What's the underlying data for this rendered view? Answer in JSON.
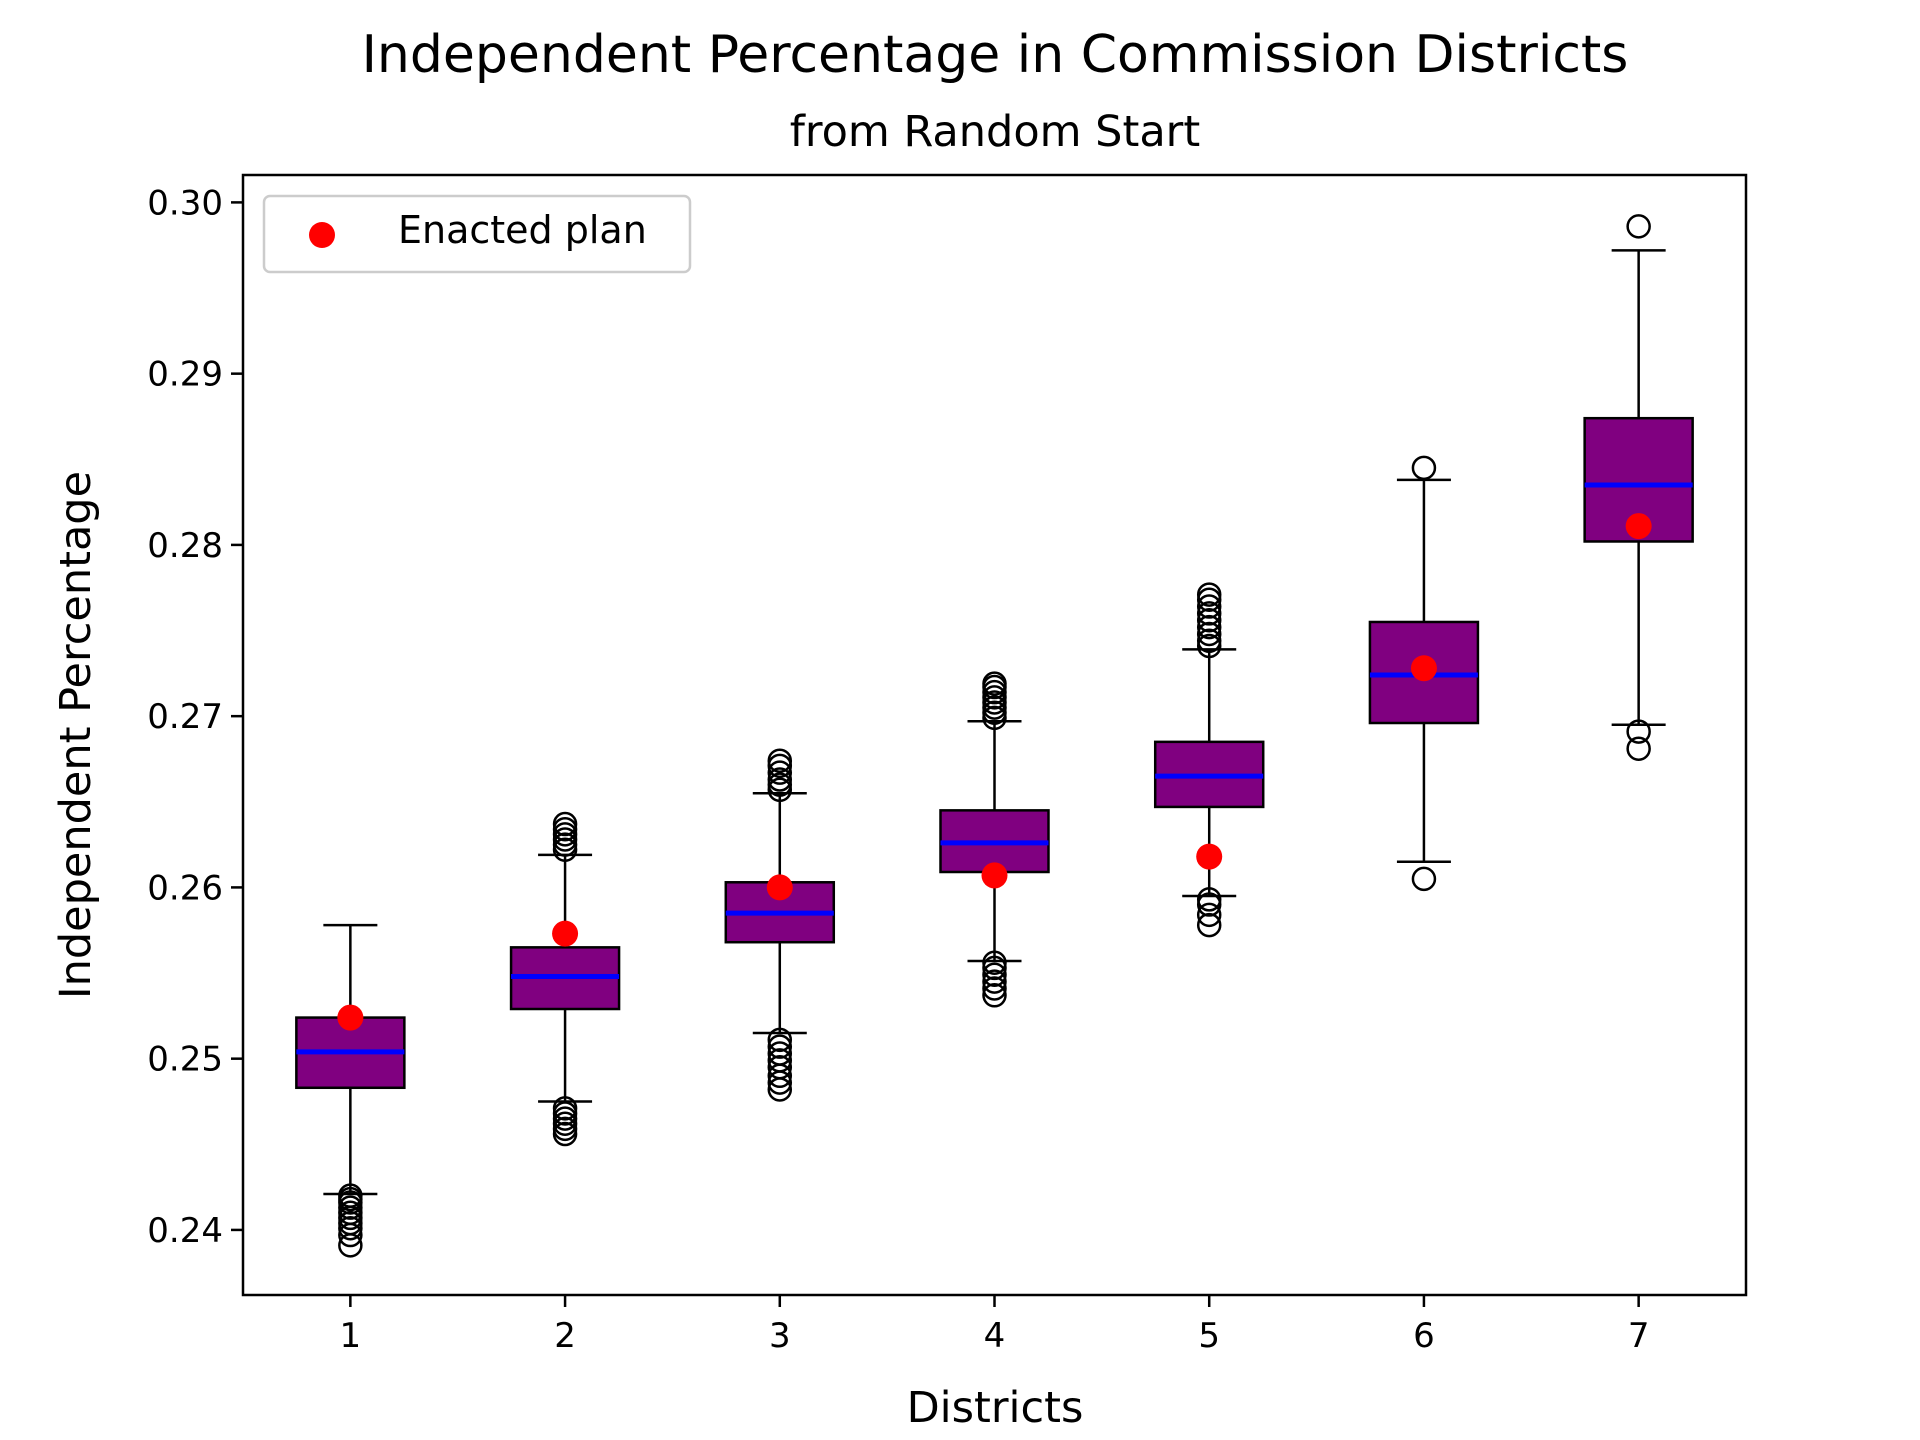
{
  "chart_data": {
    "type": "box",
    "title": "Independent Percentage in Commission Districts",
    "subtitle": "from Random Start",
    "xlabel": "Districts",
    "ylabel": "Independent Percentage",
    "ylim": [
      0.2362,
      0.3016
    ],
    "yticks": [
      0.24,
      0.25,
      0.26,
      0.27,
      0.28,
      0.29,
      0.3
    ],
    "ytick_labels": [
      "0.24",
      "0.25",
      "0.26",
      "0.27",
      "0.28",
      "0.29",
      "0.30"
    ],
    "xlim": [
      0.5,
      7.5
    ],
    "categories": [
      "1",
      "2",
      "3",
      "4",
      "5",
      "6",
      "7"
    ],
    "legend": {
      "placement": "top-left",
      "label": "Enacted plan"
    },
    "colors": {
      "box_fill": "#800080",
      "median": "#0000ff",
      "enacted": "#ff0000",
      "whisker": "#000000"
    },
    "boxes": [
      {
        "district": "1",
        "whisker_low": 0.2421,
        "q1": 0.2483,
        "median": 0.2504,
        "q3": 0.2524,
        "whisker_high": 0.2578,
        "outliers": [
          0.2391,
          0.2397,
          0.2401,
          0.2404,
          0.2407,
          0.241,
          0.2413,
          0.2416,
          0.2418,
          0.242
        ]
      },
      {
        "district": "2",
        "whisker_low": 0.2475,
        "q1": 0.2529,
        "median": 0.2548,
        "q3": 0.2565,
        "whisker_high": 0.2619,
        "outliers": [
          0.2456,
          0.2459,
          0.2462,
          0.2465,
          0.2468,
          0.2471,
          0.2622,
          0.2625,
          0.2628,
          0.2631,
          0.2634,
          0.2637
        ]
      },
      {
        "district": "3",
        "whisker_low": 0.2515,
        "q1": 0.2568,
        "median": 0.2585,
        "q3": 0.2603,
        "whisker_high": 0.2655,
        "outliers": [
          0.2482,
          0.2486,
          0.249,
          0.2495,
          0.2499,
          0.2503,
          0.2507,
          0.2511,
          0.2657,
          0.266,
          0.2663,
          0.2667,
          0.2671,
          0.2674
        ]
      },
      {
        "district": "4",
        "whisker_low": 0.2557,
        "q1": 0.2609,
        "median": 0.2626,
        "q3": 0.2645,
        "whisker_high": 0.2697,
        "outliers": [
          0.2537,
          0.2541,
          0.2545,
          0.2549,
          0.2553,
          0.2556,
          0.2699,
          0.2702,
          0.2705,
          0.2708,
          0.2711,
          0.2714,
          0.2717,
          0.2719
        ]
      },
      {
        "district": "5",
        "whisker_low": 0.2595,
        "q1": 0.2647,
        "median": 0.2665,
        "q3": 0.2685,
        "whisker_high": 0.2739,
        "outliers": [
          0.2578,
          0.2584,
          0.259,
          0.2593,
          0.2741,
          0.2744,
          0.2748,
          0.2752,
          0.2756,
          0.276,
          0.2764,
          0.2768,
          0.2771
        ]
      },
      {
        "district": "6",
        "whisker_low": 0.2615,
        "q1": 0.2696,
        "median": 0.2724,
        "q3": 0.2755,
        "whisker_high": 0.2838,
        "outliers": [
          0.2605,
          0.2845
        ]
      },
      {
        "district": "7",
        "whisker_low": 0.2695,
        "q1": 0.2802,
        "median": 0.2835,
        "q3": 0.2874,
        "whisker_high": 0.2972,
        "outliers": [
          0.2681,
          0.2691,
          0.2986
        ]
      }
    ],
    "enacted": [
      0.2524,
      0.2573,
      0.26,
      0.2607,
      0.2618,
      0.2728,
      0.2811
    ]
  }
}
